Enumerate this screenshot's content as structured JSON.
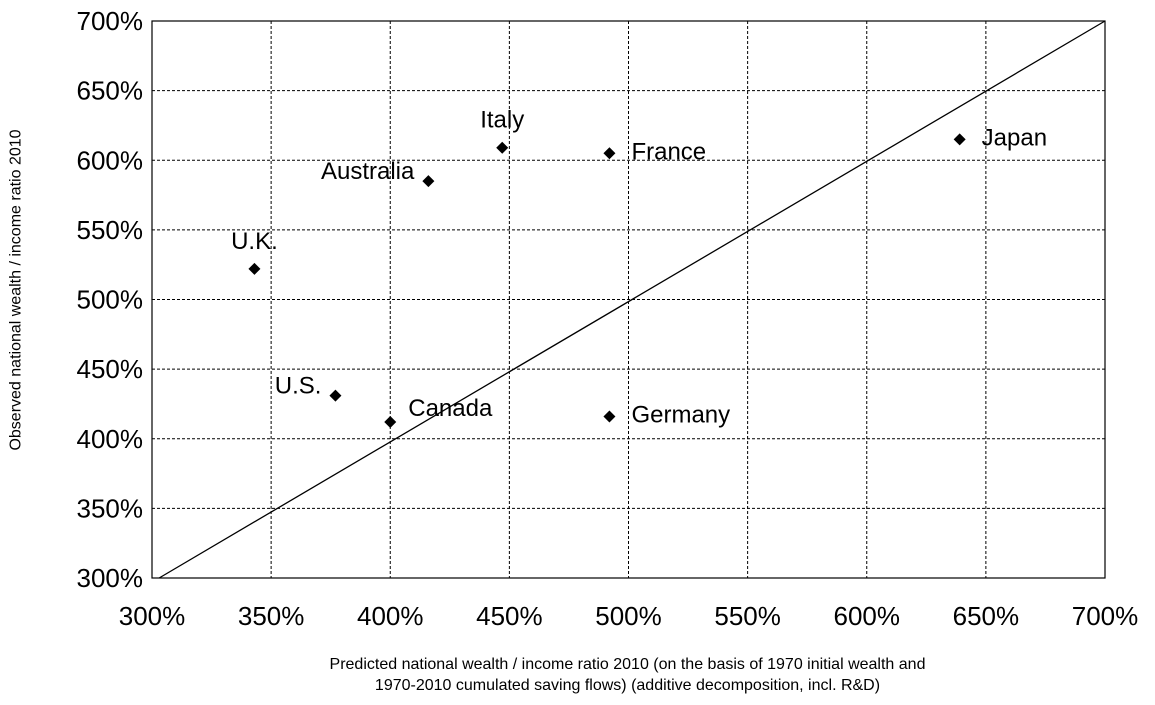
{
  "chart_data": {
    "type": "scatter",
    "title": "",
    "xlabel_lines": [
      "Predicted national wealth / income ratio 2010 (on the basis of 1970 initial wealth and",
      "1970-2010 cumulated saving flows) (additive decomposition, incl. R&D)"
    ],
    "ylabel": "Observed national  wealth / income ratio 2010",
    "xlim": [
      300,
      700
    ],
    "ylim": [
      300,
      700
    ],
    "x_ticks": [
      300,
      350,
      400,
      450,
      500,
      550,
      600,
      650,
      700
    ],
    "y_ticks": [
      300,
      350,
      400,
      450,
      500,
      550,
      600,
      650,
      700
    ],
    "x_tick_labels": [
      "300%",
      "350%",
      "400%",
      "450%",
      "500%",
      "550%",
      "600%",
      "650%",
      "700%"
    ],
    "y_tick_labels": [
      "300%",
      "350%",
      "400%",
      "450%",
      "500%",
      "550%",
      "600%",
      "650%",
      "700%"
    ],
    "grid": true,
    "reference_line": {
      "from": [
        303,
        300
      ],
      "to": [
        700,
        700
      ]
    },
    "points": [
      {
        "label": "U.K.",
        "x": 343,
        "y": 522,
        "label_side": "above"
      },
      {
        "label": "U.S.",
        "x": 377,
        "y": 431,
        "label_side": "left"
      },
      {
        "label": "Canada",
        "x": 400,
        "y": 412,
        "label_side": "above-right"
      },
      {
        "label": "Australia",
        "x": 416,
        "y": 585,
        "label_side": "left"
      },
      {
        "label": "Italy",
        "x": 447,
        "y": 609,
        "label_side": "above"
      },
      {
        "label": "France",
        "x": 492,
        "y": 605,
        "label_side": "right"
      },
      {
        "label": "Germany",
        "x": 492,
        "y": 416,
        "label_side": "right"
      },
      {
        "label": "Japan",
        "x": 639,
        "y": 615,
        "label_side": "right"
      }
    ],
    "marker": "diamond",
    "marker_color": "#000000"
  }
}
